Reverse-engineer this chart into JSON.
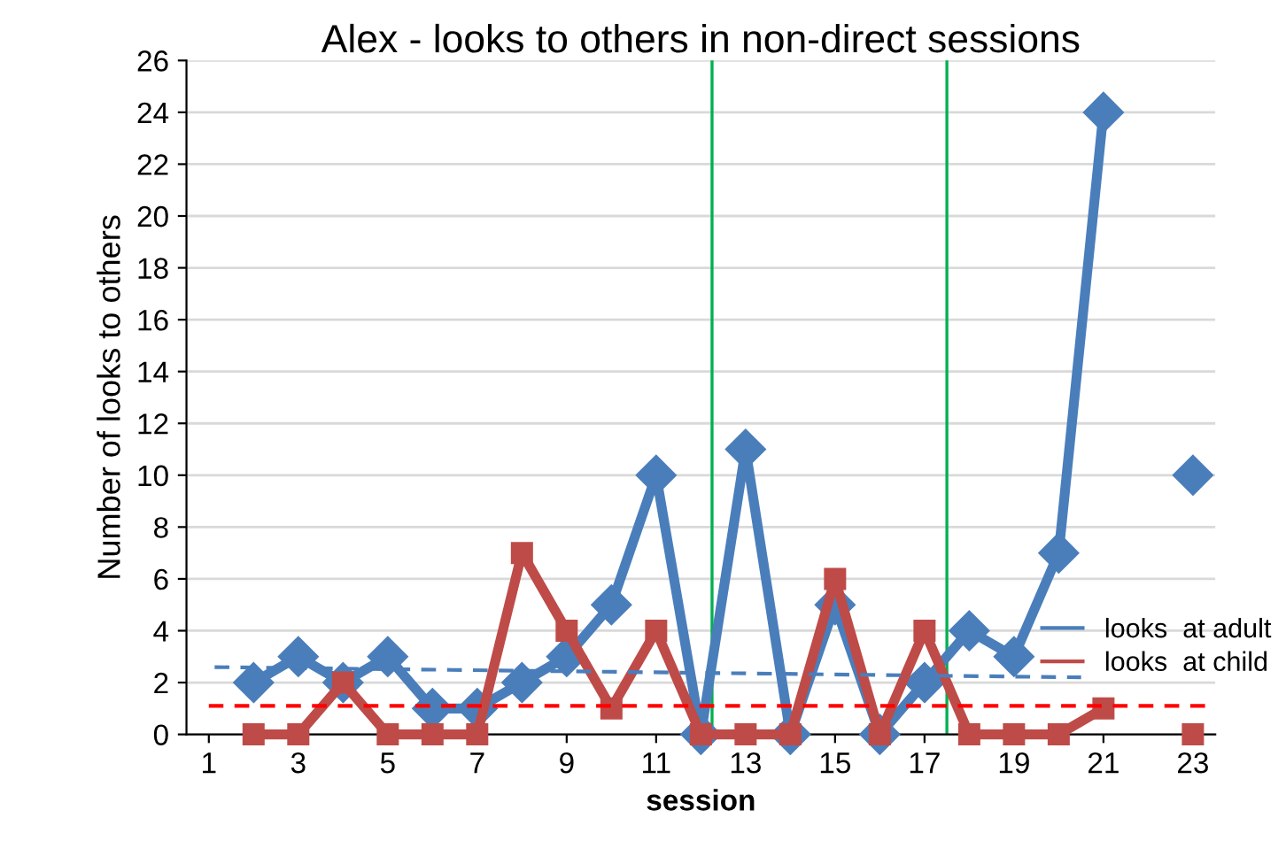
{
  "chart_data": {
    "type": "line",
    "title": "Alex - looks to others in non-direct sessions",
    "xlabel": "session",
    "ylabel": "Number of looks to others",
    "x": [
      2,
      3,
      4,
      5,
      6,
      7,
      8,
      9,
      10,
      11,
      12,
      13,
      14,
      15,
      16,
      17,
      18,
      19,
      20,
      21,
      22,
      23
    ],
    "series": [
      {
        "name": "looks  at adult",
        "color": "#4a7ebb",
        "marker": "diamond",
        "values": [
          2,
          3,
          2,
          3,
          1,
          1,
          2,
          3,
          5,
          10,
          0,
          11,
          0,
          5,
          0,
          2,
          4,
          3,
          7,
          24,
          null,
          10
        ]
      },
      {
        "name": "looks  at child",
        "color": "#be4b48",
        "marker": "square",
        "values": [
          0,
          0,
          2,
          0,
          0,
          0,
          7,
          4,
          1,
          4,
          0,
          0,
          0,
          6,
          0,
          4,
          0,
          0,
          0,
          1,
          null,
          0
        ]
      },
      {
        "type": "line",
        "color": "#4a7ebb",
        "line_style": "dashed",
        "marker": "none",
        "x": [
          1,
          20.5
        ],
        "values": [
          2.6,
          2.2
        ]
      },
      {
        "type": "line",
        "color": "#ff0000",
        "line_style": "dashed",
        "marker": "none",
        "x": [
          1,
          23.3
        ],
        "values": [
          1.1,
          1.1
        ]
      }
    ],
    "ref_lines": [
      {
        "axis": "x",
        "value": 12.25,
        "color": "#00b050"
      },
      {
        "axis": "x",
        "value": 17.5,
        "color": "#00b050"
      }
    ],
    "xlim": [
      0.5,
      23.5
    ],
    "xticks": [
      1,
      3,
      5,
      7,
      9,
      11,
      13,
      15,
      17,
      19,
      21,
      23
    ],
    "ylim": [
      0,
      26
    ],
    "yticks": [
      0,
      2,
      4,
      6,
      8,
      10,
      12,
      14,
      16,
      18,
      20,
      22,
      24,
      26
    ],
    "grid": "y",
    "legend": "right"
  }
}
